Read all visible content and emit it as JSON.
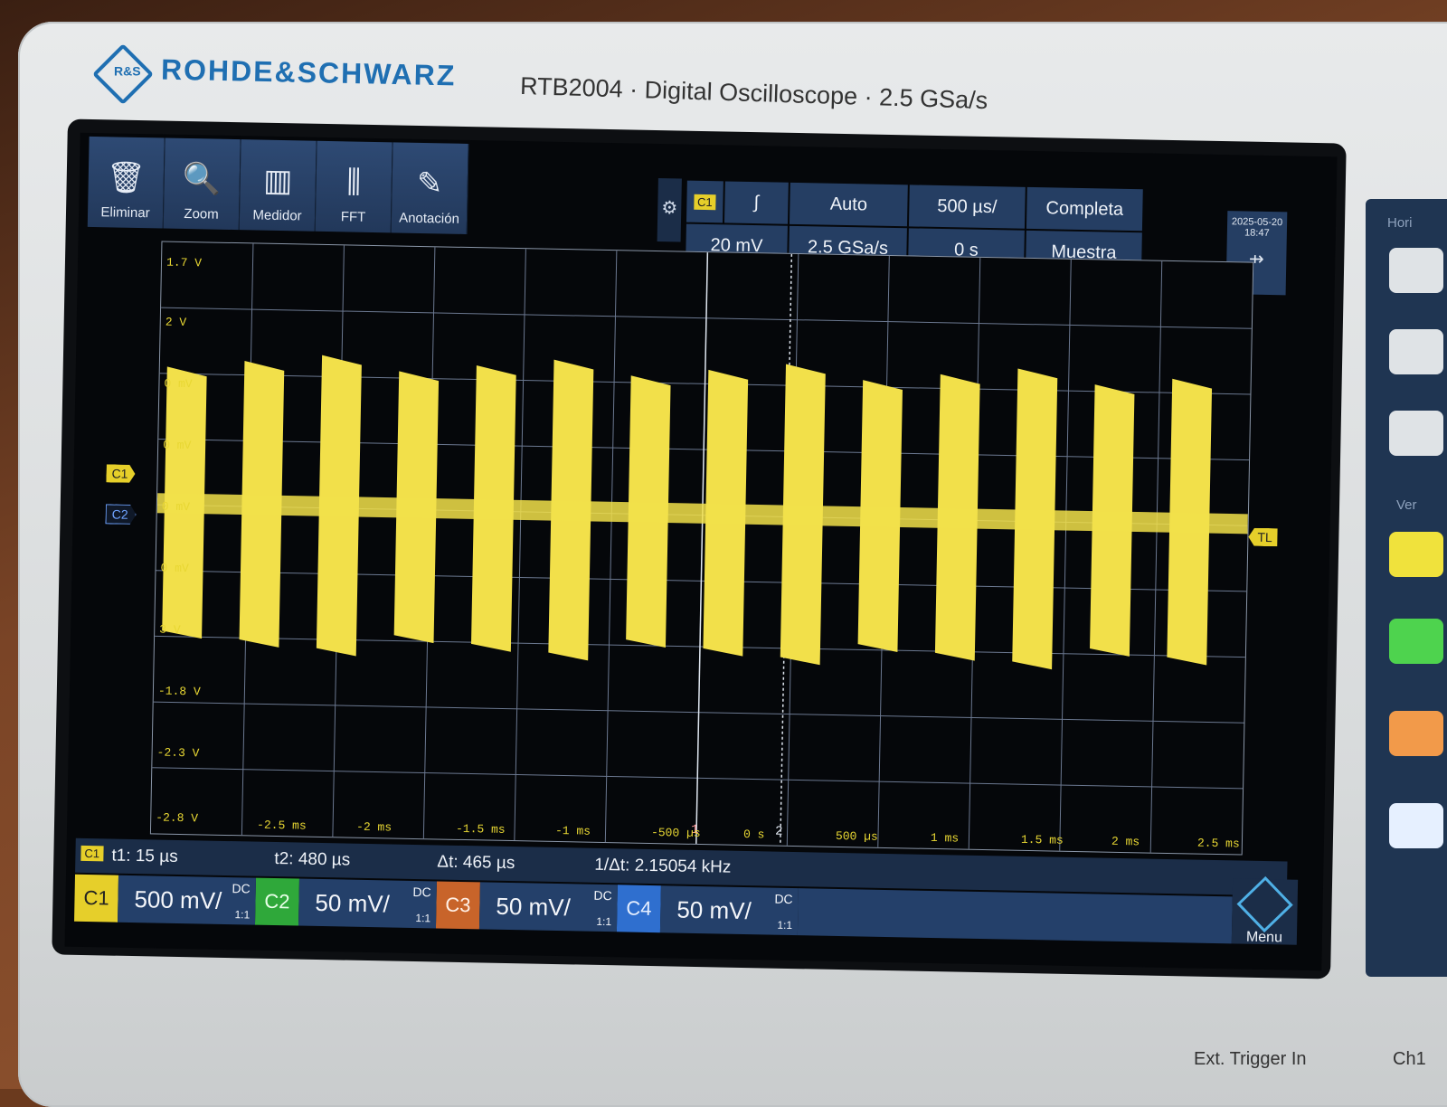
{
  "device": {
    "brand": "ROHDE&SCHWARZ",
    "model_line": "RTB2004 · Digital Oscilloscope · 2.5 GSa/s",
    "logo_text": "R&S"
  },
  "toolbar": [
    {
      "label": "Eliminar",
      "icon": "trash-icon"
    },
    {
      "label": "Zoom",
      "icon": "zoom-icon"
    },
    {
      "label": "Medidor",
      "icon": "meter-icon"
    },
    {
      "label": "FFT",
      "icon": "fft-icon"
    },
    {
      "label": "Anotación",
      "icon": "pencil-icon"
    }
  ],
  "trigger": {
    "channel_badge": "C1",
    "slope_symbol": "∫",
    "level": "20 mV",
    "mode": "Auto",
    "sample_rate": "2.5 GSa/s",
    "timebase": "500 µs/",
    "position": "0 s",
    "acquisition": "Completa",
    "sampling": "Muestra"
  },
  "status": {
    "date": "2025-05-20",
    "time": "18:47"
  },
  "axis": {
    "voltage_labels": [
      "1.7 V",
      "2 V",
      "0 mV",
      "0 mV",
      "0 mV",
      "0 mV",
      "3 V",
      "-1.8 V",
      "-2.3 V",
      "-2.8 V"
    ],
    "time_labels": [
      "-2.5 ms",
      "-2 ms",
      "-1.5 ms",
      "-1 ms",
      "-500 µs",
      "0 s",
      "500 µs",
      "1 ms",
      "1.5 ms",
      "2 ms",
      "2.5 ms"
    ]
  },
  "markers": {
    "c1": "C1",
    "c2": "C2",
    "tl": "TL",
    "cursor1": "1",
    "cursor2": "2"
  },
  "cursors": {
    "badge": "C1",
    "t1": "t1: 15 µs",
    "t2": "t2: 480 µs",
    "dt": "Δt: 465 µs",
    "inv_dt": "1/Δt: 2.15054 kHz"
  },
  "channels": [
    {
      "name": "C1",
      "scale": "500 mV/",
      "coupling": "DC",
      "ratio": "1:1",
      "color": "#e6cf2a",
      "text": "#222"
    },
    {
      "name": "C2",
      "scale": "50 mV/",
      "coupling": "DC",
      "ratio": "1:1",
      "color": "#2fa83a",
      "text": "#e8ffe8"
    },
    {
      "name": "C3",
      "scale": "50 mV/",
      "coupling": "DC",
      "ratio": "1:1",
      "color": "#c8642a",
      "text": "#fff0e6"
    },
    {
      "name": "C4",
      "scale": "50 mV/",
      "coupling": "DC",
      "ratio": "1:1",
      "color": "#2f6fcf",
      "text": "#e6efff"
    }
  ],
  "menu_label": "Menu",
  "bottom_labels": [
    "Ext. Trigger In",
    "Ch1"
  ],
  "side_labels": [
    "Hori",
    "Ver"
  ],
  "colors": {
    "trace": "#f2e04a",
    "grid": "#6b7890",
    "panel": "#253e63"
  }
}
